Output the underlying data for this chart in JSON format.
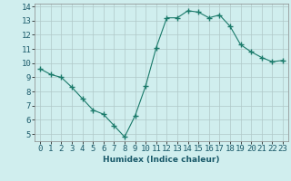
{
  "x": [
    0,
    1,
    2,
    3,
    4,
    5,
    6,
    7,
    8,
    9,
    10,
    11,
    12,
    13,
    14,
    15,
    16,
    17,
    18,
    19,
    20,
    21,
    22,
    23
  ],
  "y": [
    9.6,
    9.2,
    9.0,
    8.3,
    7.5,
    6.7,
    6.4,
    5.6,
    4.8,
    6.3,
    8.4,
    11.1,
    13.2,
    13.2,
    13.7,
    13.6,
    13.2,
    13.4,
    12.6,
    11.3,
    10.8,
    10.4,
    10.1,
    10.2
  ],
  "line_color": "#1a7a6a",
  "marker": "+",
  "marker_size": 4,
  "bg_color": "#d0eeee",
  "grid_color": "#b0c8c8",
  "xlabel": "Humidex (Indice chaleur)",
  "xlim": [
    -0.5,
    23.5
  ],
  "ylim": [
    4.5,
    14.2
  ],
  "yticks": [
    5,
    6,
    7,
    8,
    9,
    10,
    11,
    12,
    13,
    14
  ],
  "xticks": [
    0,
    1,
    2,
    3,
    4,
    5,
    6,
    7,
    8,
    9,
    10,
    11,
    12,
    13,
    14,
    15,
    16,
    17,
    18,
    19,
    20,
    21,
    22,
    23
  ],
  "label_fontsize": 6.5,
  "tick_fontsize": 6.5
}
